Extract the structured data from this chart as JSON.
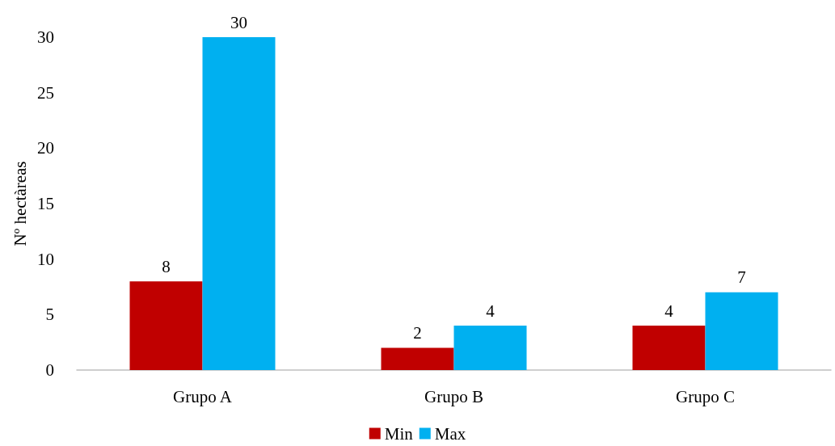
{
  "chart_data": {
    "type": "bar",
    "ylabel": "Nº hectàreas",
    "categories": [
      "Grupo A",
      "Grupo B",
      "Grupo C"
    ],
    "series": [
      {
        "name": "Min",
        "color": "#c00000",
        "values": [
          8,
          2,
          4
        ]
      },
      {
        "name": "Max",
        "color": "#00b0f0",
        "values": [
          30,
          4,
          7
        ]
      }
    ],
    "ylim": [
      0,
      30
    ],
    "yticks": [
      0,
      5,
      10,
      15,
      20,
      25,
      30
    ],
    "grid": false,
    "legend": "bottom",
    "data_labels": true
  }
}
